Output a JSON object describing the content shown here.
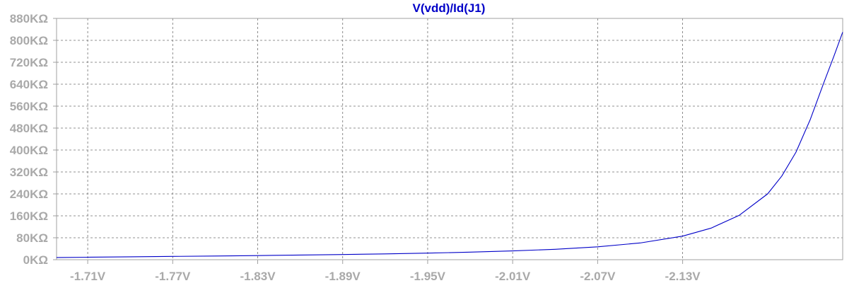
{
  "chart_data": {
    "type": "line",
    "title": "V(vdd)/Id(J1)",
    "xlabel": "",
    "ylabel": "",
    "xlim": [
      -1.688,
      -2.243
    ],
    "ylim": [
      0,
      880
    ],
    "x_ticks": [
      -1.71,
      -1.77,
      -1.83,
      -1.89,
      -1.95,
      -2.01,
      -2.07,
      -2.13
    ],
    "x_tick_labels": [
      "-1.71V",
      "-1.77V",
      "-1.83V",
      "-1.89V",
      "-1.95V",
      "-2.01V",
      "-2.07V",
      "-2.13V"
    ],
    "y_ticks": [
      0,
      80,
      160,
      240,
      320,
      400,
      480,
      560,
      640,
      720,
      800,
      880
    ],
    "y_tick_labels": [
      "0KΩ",
      "80KΩ",
      "160KΩ",
      "240KΩ",
      "320KΩ",
      "400KΩ",
      "480KΩ",
      "560KΩ",
      "640KΩ",
      "720KΩ",
      "800KΩ",
      "880KΩ"
    ],
    "grid": true,
    "series": [
      {
        "name": "V(vdd)/Id(J1)",
        "color": "#0000c8",
        "x": [
          -1.688,
          -1.71,
          -1.74,
          -1.77,
          -1.8,
          -1.83,
          -1.86,
          -1.89,
          -1.92,
          -1.95,
          -1.98,
          -2.01,
          -2.04,
          -2.07,
          -2.1,
          -2.13,
          -2.15,
          -2.17,
          -2.19,
          -2.2,
          -2.21,
          -2.22,
          -2.23,
          -2.237,
          -2.243
        ],
        "y": [
          8,
          9,
          10.5,
          12,
          13.5,
          15,
          17,
          19,
          21,
          24,
          27.5,
          32,
          38,
          47,
          61,
          86,
          115,
          162,
          240,
          305,
          392,
          510,
          650,
          745,
          830
        ]
      }
    ]
  },
  "colors": {
    "title": "#0000c8",
    "series": "#0000c8",
    "grid": "#707070",
    "frame": "#a0a0a0",
    "tick_label": "#a9a9a9"
  }
}
